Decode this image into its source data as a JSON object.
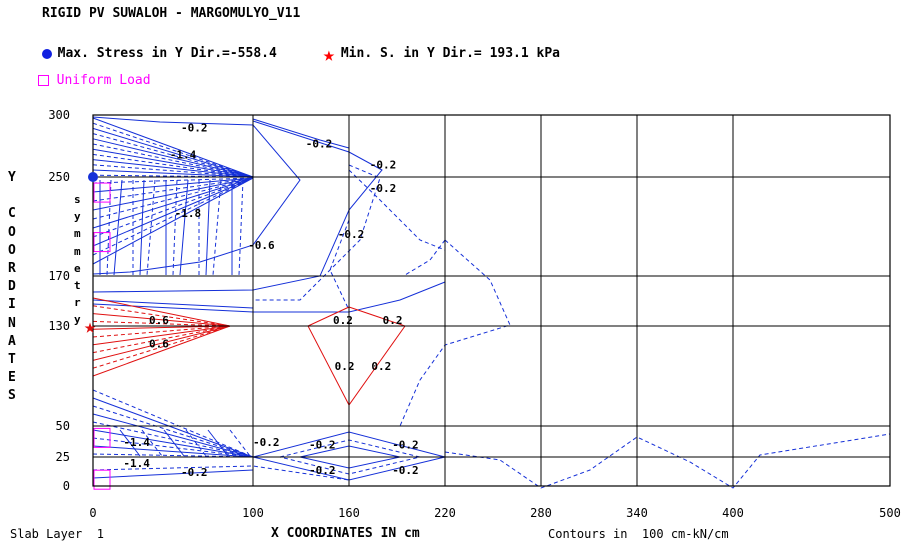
{
  "header": {
    "title": "RIGID PV SUWALOH - MARGOMULYO_V11",
    "max_stress": "Max. Stress in Y Dir.=-558.4",
    "min_stress": "Min. S. in Y Dir.= 193.1 kPa",
    "load_legend": "Uniform Load"
  },
  "colors": {
    "grid": "#000000",
    "blue": "#1530d8",
    "red": "#e01010",
    "magenta": "#ff00ff"
  },
  "chart_data": {
    "type": "heatmap",
    "title": "RIGID PV SUWALOH - MARGOMULYO_V11",
    "xlabel": "X COORDINATES IN cm",
    "ylabel": "Y COORDINATES",
    "xlim": [
      0,
      500
    ],
    "ylim": [
      0,
      300
    ],
    "x_ticks": [
      "0",
      "100",
      "160",
      "220",
      "280",
      "340",
      "400",
      "500"
    ],
    "y_ticks": [
      "0",
      "25",
      "50",
      "130",
      "170",
      "250",
      "300"
    ],
    "grid_x": [
      0,
      100,
      160,
      220,
      280,
      340,
      400,
      500
    ],
    "grid_y": [
      0,
      25,
      50,
      130,
      170,
      250,
      300
    ],
    "symmetry_label": "symmetry",
    "contour_labels": [
      {
        "text": "-0.2",
        "x": 55,
        "y": 290,
        "color": "blue"
      },
      {
        "text": "-1.4",
        "x": 48,
        "y": 268,
        "color": "blue"
      },
      {
        "text": "-0.2",
        "x": 133,
        "y": 277,
        "color": "blue"
      },
      {
        "text": "-0.2",
        "x": 173,
        "y": 260,
        "color": "blue"
      },
      {
        "text": "-0.2",
        "x": 173,
        "y": 241,
        "color": "blue"
      },
      {
        "text": "-1.8",
        "x": 51,
        "y": 221,
        "color": "blue"
      },
      {
        "text": "-0.2",
        "x": 153,
        "y": 204,
        "color": "blue"
      },
      {
        "text": "-0.6",
        "x": 97,
        "y": 195,
        "color": "blue"
      },
      {
        "text": "0.6",
        "x": 35,
        "y": 135,
        "color": "red"
      },
      {
        "text": "0.6",
        "x": 35,
        "y": 116,
        "color": "red"
      },
      {
        "text": "0.2",
        "x": 150,
        "y": 135,
        "color": "red"
      },
      {
        "text": "0.2",
        "x": 181,
        "y": 135,
        "color": "red"
      },
      {
        "text": "0.2",
        "x": 151,
        "y": 98,
        "color": "red"
      },
      {
        "text": "0.2",
        "x": 174,
        "y": 98,
        "color": "red"
      },
      {
        "text": "-1.4",
        "x": 19,
        "y": 37,
        "color": "blue"
      },
      {
        "text": "-0.2",
        "x": 100,
        "y": 37,
        "color": "blue"
      },
      {
        "text": "-0.2",
        "x": 135,
        "y": 35,
        "color": "blue"
      },
      {
        "text": "-0.2",
        "x": 187,
        "y": 35,
        "color": "blue"
      },
      {
        "text": "-1.4",
        "x": 19,
        "y": 20,
        "color": "blue"
      },
      {
        "text": "-0.2",
        "x": 55,
        "y": 12,
        "color": "blue"
      },
      {
        "text": "-0.2",
        "x": 135,
        "y": 14,
        "color": "blue"
      },
      {
        "text": "-0.2",
        "x": 187,
        "y": 14,
        "color": "blue"
      }
    ],
    "max_point": {
      "x": 0,
      "y": 250,
      "value": -558.4
    },
    "min_point": {
      "x": 0,
      "y": 130,
      "value": 193.1
    },
    "uniform_load_boxes_y": [
      237,
      197,
      40,
      5
    ]
  },
  "axis": {
    "ylabel_letters": [
      "Y",
      "",
      "C",
      "O",
      "O",
      "R",
      "D",
      "I",
      "N",
      "A",
      "T",
      "E",
      "S"
    ],
    "sym_letters": [
      "s",
      "y",
      "m",
      "m",
      "e",
      "t",
      "r",
      "y"
    ]
  },
  "footer": {
    "layer": "Slab Layer  1",
    "xlabel": "X COORDINATES IN cm",
    "contours": "Contours in  100 cm-kN/cm"
  }
}
